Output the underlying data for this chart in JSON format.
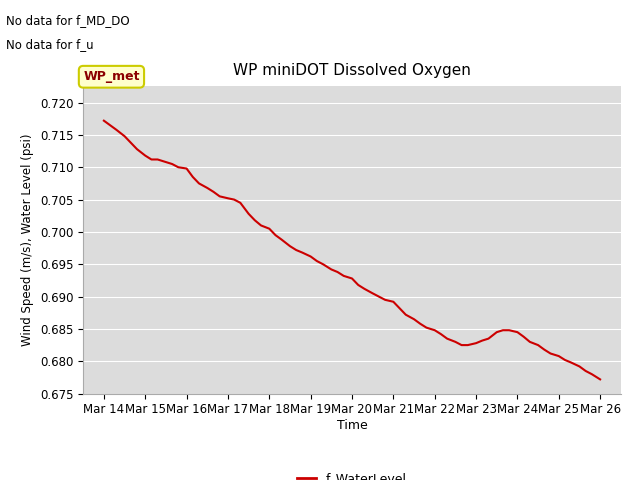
{
  "title": "WP miniDOT Dissolved Oxygen",
  "xlabel": "Time",
  "ylabel": "Wind Speed (m/s), Water Level (psi)",
  "top_left_text_line1": "No data for f_MD_DO",
  "top_left_text_line2": "No data for f_u",
  "legend_label": "f_WaterLevel",
  "legend_color": "#cc0000",
  "line_color": "#cc0000",
  "fig_bg_color": "#ffffff",
  "plot_bg_color": "#dcdcdc",
  "grid_color": "#ffffff",
  "ylim": [
    0.675,
    0.7225
  ],
  "yticks": [
    0.675,
    0.68,
    0.685,
    0.69,
    0.695,
    0.7,
    0.705,
    0.71,
    0.715,
    0.72
  ],
  "wp_met_label": "WP_met",
  "wp_met_box_facecolor": "#ffffcc",
  "wp_met_box_edgecolor": "#cccc00",
  "wp_met_text_color": "#8b0000",
  "x_days": [
    14,
    15,
    16,
    17,
    18,
    19,
    20,
    21,
    22,
    23,
    24,
    25,
    26
  ],
  "xlim": [
    13.5,
    26.5
  ],
  "data_x": [
    14.0,
    14.15,
    14.3,
    14.5,
    14.65,
    14.8,
    15.0,
    15.15,
    15.3,
    15.5,
    15.65,
    15.8,
    16.0,
    16.15,
    16.3,
    16.5,
    16.65,
    16.8,
    17.0,
    17.15,
    17.3,
    17.5,
    17.65,
    17.8,
    18.0,
    18.15,
    18.3,
    18.5,
    18.65,
    18.8,
    19.0,
    19.15,
    19.3,
    19.5,
    19.65,
    19.8,
    20.0,
    20.15,
    20.3,
    20.5,
    20.65,
    20.8,
    21.0,
    21.15,
    21.3,
    21.5,
    21.65,
    21.8,
    22.0,
    22.15,
    22.3,
    22.5,
    22.65,
    22.8,
    23.0,
    23.15,
    23.3,
    23.5,
    23.65,
    23.8,
    24.0,
    24.15,
    24.3,
    24.5,
    24.65,
    24.8,
    25.0,
    25.15,
    25.3,
    25.5,
    25.65,
    25.8,
    26.0
  ],
  "data_y": [
    0.7172,
    0.7165,
    0.7158,
    0.7148,
    0.7138,
    0.7128,
    0.7118,
    0.7112,
    0.7112,
    0.7108,
    0.7105,
    0.71,
    0.7098,
    0.7085,
    0.7075,
    0.7068,
    0.7062,
    0.7055,
    0.7052,
    0.705,
    0.7045,
    0.7028,
    0.7018,
    0.701,
    0.7005,
    0.6995,
    0.6988,
    0.6978,
    0.6972,
    0.6968,
    0.6962,
    0.6955,
    0.695,
    0.6942,
    0.6938,
    0.6932,
    0.6928,
    0.6918,
    0.6912,
    0.6905,
    0.69,
    0.6895,
    0.6892,
    0.6882,
    0.6872,
    0.6865,
    0.6858,
    0.6852,
    0.6848,
    0.6842,
    0.6835,
    0.683,
    0.6825,
    0.6825,
    0.6828,
    0.6832,
    0.6835,
    0.6845,
    0.6848,
    0.6848,
    0.6845,
    0.6838,
    0.683,
    0.6825,
    0.6818,
    0.6812,
    0.6808,
    0.6802,
    0.6798,
    0.6792,
    0.6785,
    0.678,
    0.6772
  ]
}
